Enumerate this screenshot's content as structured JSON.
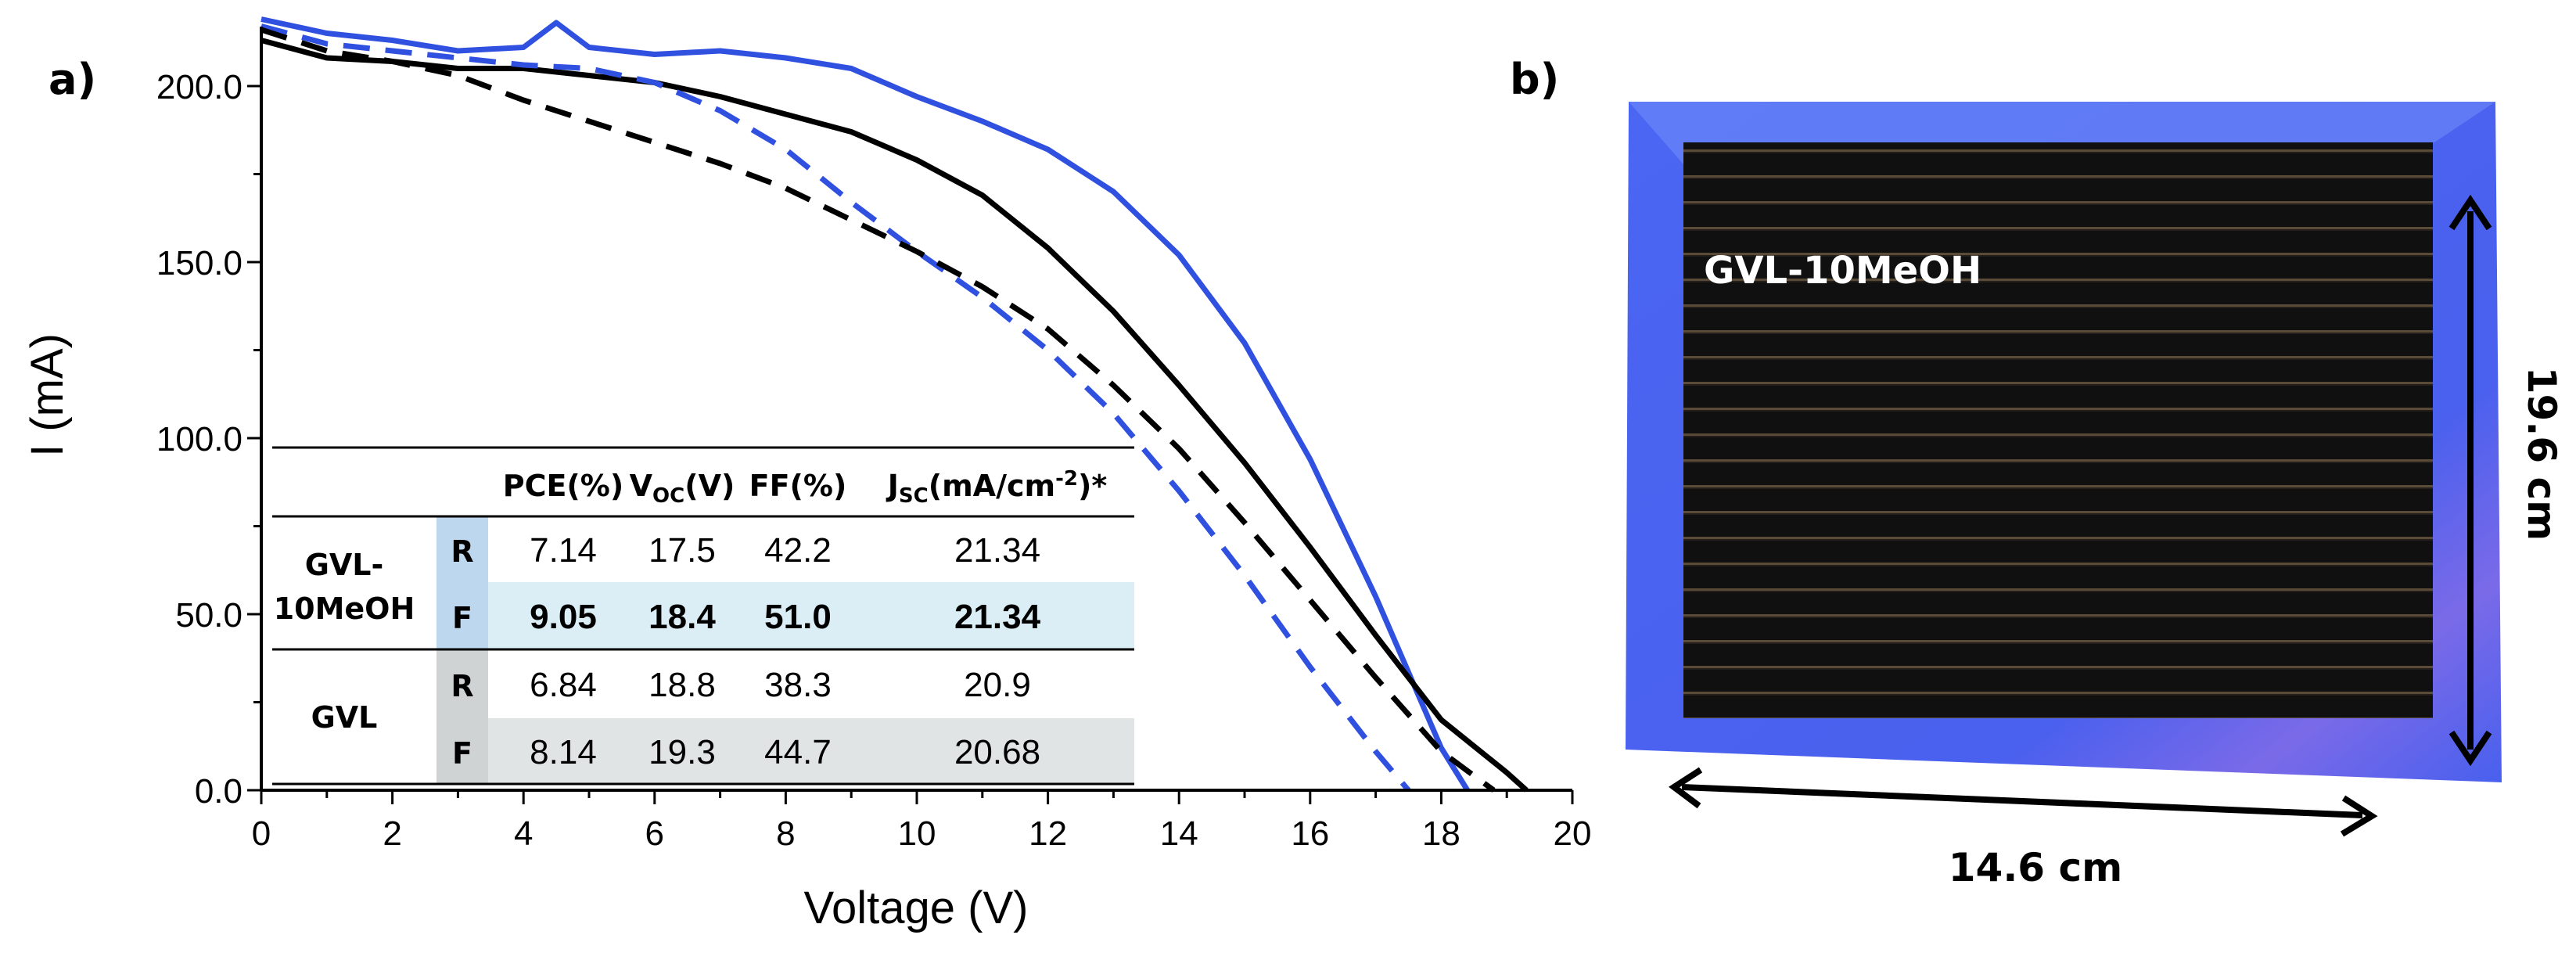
{
  "panel_a_label": "a)",
  "panel_b_label": "b)",
  "chart_data": {
    "type": "line",
    "xlabel": "Voltage (V)",
    "ylabel": "I (mA)",
    "xlim": [
      0,
      20
    ],
    "ylim": [
      0,
      220
    ],
    "xticks": [
      0,
      2,
      4,
      6,
      8,
      10,
      12,
      14,
      16,
      18,
      20
    ],
    "yticks": [
      0,
      50,
      100,
      150,
      200
    ],
    "ytick_labels": [
      "0.0",
      "50.0",
      "100.0",
      "150.0",
      "200.0"
    ],
    "grid": false,
    "series": [
      {
        "color": "#3050e0",
        "dash": "solid",
        "x": [
          0,
          1,
          2,
          3,
          4,
          4.5,
          5,
          6,
          7,
          8,
          9,
          10,
          11,
          12,
          13,
          14,
          15,
          16,
          17,
          18,
          18.4
        ],
        "y": [
          219,
          215,
          213,
          210,
          211,
          218,
          211,
          209,
          210,
          208,
          205,
          197,
          190,
          182,
          170,
          152,
          127,
          94,
          55,
          12,
          0
        ]
      },
      {
        "color": "#000000",
        "dash": "solid",
        "x": [
          0,
          1,
          2,
          3,
          4,
          5,
          6,
          7,
          8,
          9,
          10,
          11,
          12,
          13,
          14,
          15,
          16,
          17,
          18,
          19,
          19.3
        ],
        "y": [
          213,
          208,
          207,
          205,
          205,
          203,
          201,
          197,
          192,
          187,
          179,
          169,
          154,
          136,
          115,
          93,
          69,
          44,
          20,
          5,
          0
        ]
      },
      {
        "color": "#3050e0",
        "dash": "dashed",
        "x": [
          0,
          1,
          2,
          3,
          4,
          5,
          6,
          7,
          8,
          9,
          10,
          11,
          12,
          13,
          14,
          15,
          16,
          17,
          17.5
        ],
        "y": [
          217,
          212,
          210,
          208,
          206,
          205,
          201,
          193,
          182,
          167,
          153,
          140,
          125,
          107,
          85,
          61,
          35,
          11,
          0
        ]
      },
      {
        "color": "#000000",
        "dash": "dashed",
        "x": [
          0,
          1,
          2,
          3,
          4,
          5,
          6,
          7,
          8,
          9,
          10,
          11,
          12,
          13,
          14,
          15,
          16,
          17,
          18,
          18.8
        ],
        "y": [
          216,
          210,
          207,
          203,
          196,
          190,
          184,
          178,
          171,
          162,
          153,
          143,
          131,
          115,
          97,
          76,
          54,
          32,
          11,
          0
        ]
      }
    ]
  },
  "table": {
    "headers": [
      "PCE(%)",
      "V",
      "OC",
      "(V)",
      "FF(%)",
      "J",
      "SC",
      "(mA/cm",
      "-2",
      ")*"
    ],
    "groups": [
      {
        "name_line1": "GVL-",
        "name_line2": "10MeOH",
        "fill": "#dbeef6",
        "tag_fill": "#bcd7ee",
        "rows": [
          {
            "mode": "R",
            "pce": "7.14",
            "voc": "17.5",
            "ff": "42.2",
            "jsc": "21.34",
            "bold": false
          },
          {
            "mode": "F",
            "pce": "9.05",
            "voc": "18.4",
            "ff": "51.0",
            "jsc": "21.34",
            "bold": true
          }
        ]
      },
      {
        "name_line1": "GVL",
        "name_line2": "",
        "fill": "#e1e4e5",
        "tag_fill": "#cfd3d4",
        "rows": [
          {
            "mode": "R",
            "pce": "6.84",
            "voc": "18.8",
            "ff": "38.3",
            "jsc": "20.9",
            "bold": false
          },
          {
            "mode": "F",
            "pce": "8.14",
            "voc": "19.3",
            "ff": "44.7",
            "jsc": "20.68",
            "bold": false
          }
        ]
      }
    ]
  },
  "photo": {
    "module_label": "GVL-10MeOH",
    "height_label": "19.6 cm",
    "width_label": "14.6 cm",
    "frame_color": "#4a64f0"
  }
}
